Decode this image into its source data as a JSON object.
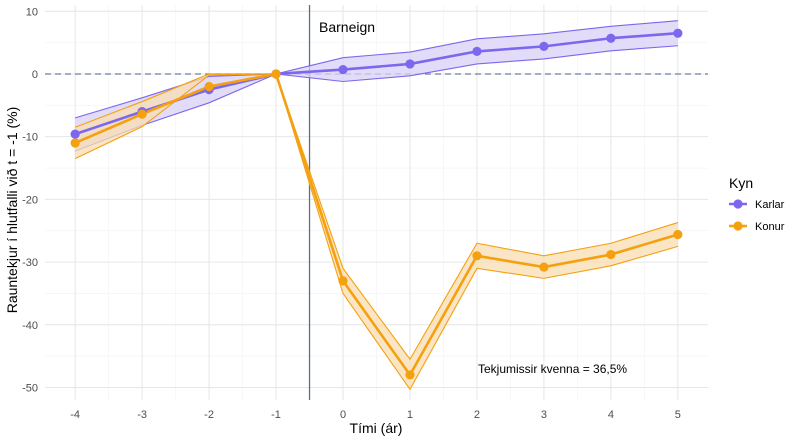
{
  "chart_data": {
    "type": "line",
    "title": "",
    "xlabel": "Tími (ár)",
    "ylabel": "Rauntekjur í hlutfalli við t = -1 (%)",
    "xlim": [
      -4.45,
      5.45
    ],
    "ylim": [
      -52,
      11
    ],
    "x_ticks": [
      -4,
      -3,
      -2,
      -1,
      0,
      1,
      2,
      3,
      4,
      5
    ],
    "y_ticks": [
      10,
      0,
      -10,
      -20,
      -30,
      -40,
      -50
    ],
    "reference_hline": 0,
    "event_vline": -0.5,
    "event_label": "Barneign",
    "note": "Tekjumissir kvenna = 36,5%",
    "legend_title": "Kyn",
    "legend_position": "right",
    "x": [
      -4,
      -3,
      -2,
      -1,
      0,
      1,
      2,
      3,
      4,
      5
    ],
    "series": [
      {
        "name": "Karlar",
        "color": "#7b68ee",
        "fill": "#d9d0f7",
        "values": [
          -9.6,
          -6.0,
          -2.5,
          0,
          0.7,
          1.6,
          3.6,
          4.4,
          5.7,
          6.5
        ],
        "lower": [
          -12.3,
          -8.2,
          -4.6,
          0,
          -1.2,
          -0.3,
          1.6,
          2.4,
          3.7,
          4.5
        ],
        "upper": [
          -7.0,
          -3.8,
          -0.4,
          0,
          2.6,
          3.5,
          5.6,
          6.4,
          7.6,
          8.5
        ]
      },
      {
        "name": "Konur",
        "color": "#f5a00f",
        "fill": "#f8ddb2",
        "values": [
          -11.0,
          -6.4,
          -2.0,
          0,
          -33.0,
          -48.0,
          -29.0,
          -30.8,
          -28.8,
          -25.6
        ],
        "lower": [
          -13.5,
          -8.4,
          -0.2,
          0,
          -35.0,
          -50.3,
          -31.0,
          -32.6,
          -30.6,
          -27.5
        ],
        "upper": [
          -8.5,
          -4.4,
          0,
          0,
          -31.0,
          -45.5,
          -27.0,
          -29.0,
          -27.0,
          -23.7
        ]
      }
    ]
  }
}
